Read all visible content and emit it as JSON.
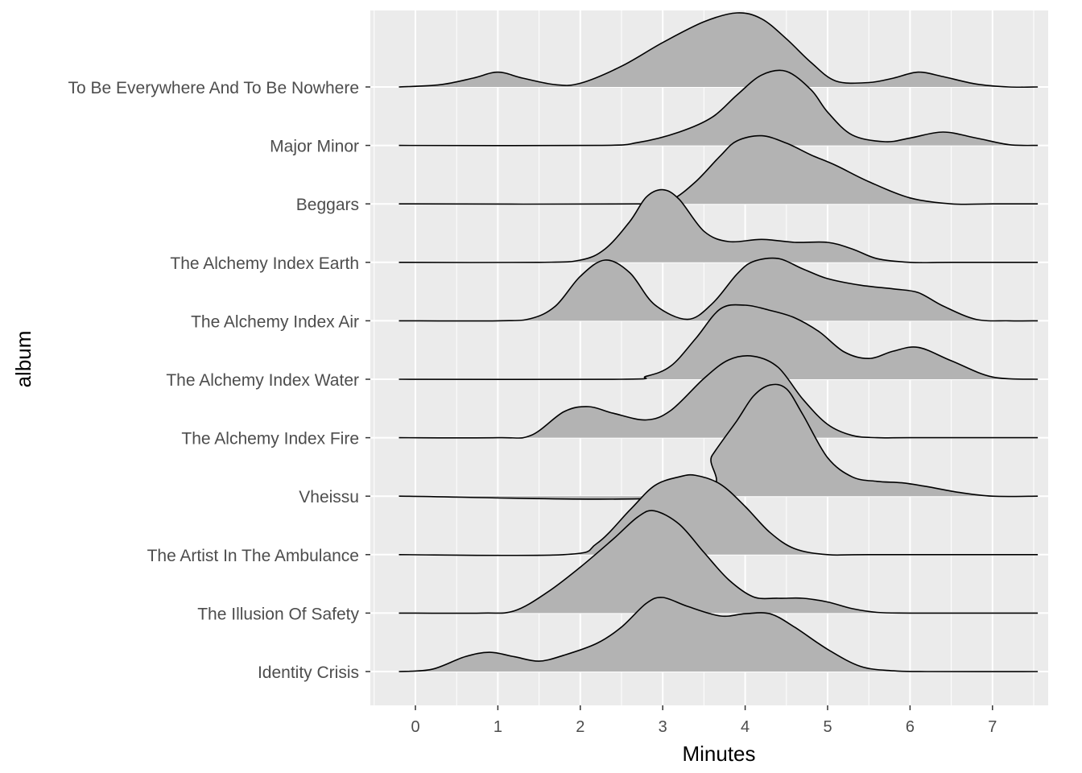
{
  "chart_data": {
    "type": "ridgeline",
    "title": "",
    "xlabel": "Minutes",
    "ylabel": "album",
    "xlim": [
      -0.5,
      7.6
    ],
    "x_ticks": [
      0,
      1,
      2,
      3,
      4,
      5,
      6,
      7
    ],
    "x_tick_labels": [
      "0",
      "1",
      "2",
      "3",
      "4",
      "5",
      "6",
      "7"
    ],
    "grid": true,
    "legend": "none",
    "colors": {
      "panel": "#ebebeb",
      "grid": "#ffffff",
      "fill": "#b3b3b3",
      "line": "#000000"
    },
    "series": [
      {
        "name": "To Be Everywhere And To Be Nowhere",
        "x": [
          -0.2,
          0.3,
          0.7,
          1.0,
          1.3,
          1.7,
          2.0,
          2.5,
          3.0,
          3.5,
          3.9,
          4.2,
          4.5,
          4.8,
          5.1,
          5.5,
          5.8,
          6.1,
          6.4,
          6.8,
          7.2,
          7.55
        ],
        "y": [
          0.0,
          0.03,
          0.12,
          0.2,
          0.12,
          0.03,
          0.05,
          0.28,
          0.6,
          0.88,
          1.0,
          0.92,
          0.65,
          0.33,
          0.08,
          0.06,
          0.12,
          0.2,
          0.14,
          0.04,
          0.0,
          0.0
        ]
      },
      {
        "name": "Major Minor",
        "x": [
          -0.2,
          2.2,
          2.7,
          3.2,
          3.6,
          3.9,
          4.2,
          4.5,
          4.8,
          5.0,
          5.3,
          5.7,
          6.0,
          6.4,
          6.8,
          7.2,
          7.55
        ],
        "y": [
          0.0,
          0.0,
          0.04,
          0.18,
          0.38,
          0.68,
          0.95,
          1.0,
          0.75,
          0.45,
          0.14,
          0.05,
          0.1,
          0.18,
          0.1,
          0.01,
          0.0
        ]
      },
      {
        "name": "Beggars",
        "x": [
          -0.2,
          2.8,
          3.1,
          3.4,
          3.7,
          3.9,
          4.2,
          4.5,
          4.8,
          5.1,
          5.5,
          6.0,
          6.5,
          7.0,
          7.55
        ],
        "y": [
          0.0,
          0.0,
          0.05,
          0.3,
          0.65,
          0.85,
          0.92,
          0.82,
          0.66,
          0.52,
          0.3,
          0.08,
          0.0,
          0.0,
          0.0
        ]
      },
      {
        "name": "The Alchemy Index Earth",
        "x": [
          -0.2,
          1.5,
          2.0,
          2.3,
          2.6,
          2.8,
          3.0,
          3.2,
          3.5,
          3.8,
          4.2,
          4.6,
          5.0,
          5.3,
          5.6,
          6.0,
          6.5,
          7.55
        ],
        "y": [
          0.0,
          0.0,
          0.03,
          0.18,
          0.55,
          0.88,
          0.98,
          0.85,
          0.42,
          0.28,
          0.31,
          0.27,
          0.27,
          0.18,
          0.05,
          0.0,
          0.0,
          0.0
        ]
      },
      {
        "name": "The Alchemy Index Air",
        "x": [
          -0.2,
          1.0,
          1.4,
          1.7,
          2.0,
          2.3,
          2.6,
          2.9,
          3.3,
          3.6,
          3.9,
          4.1,
          4.4,
          4.7,
          5.0,
          5.4,
          5.8,
          6.1,
          6.4,
          6.8,
          7.2,
          7.55
        ],
        "y": [
          0.0,
          0.0,
          0.03,
          0.2,
          0.6,
          0.82,
          0.65,
          0.22,
          0.02,
          0.23,
          0.63,
          0.8,
          0.84,
          0.7,
          0.57,
          0.48,
          0.43,
          0.38,
          0.2,
          0.02,
          0.0,
          0.0
        ]
      },
      {
        "name": "The Alchemy Index Water",
        "x": [
          -0.2,
          2.5,
          2.8,
          3.1,
          3.4,
          3.7,
          4.0,
          4.3,
          4.6,
          4.9,
          5.2,
          5.5,
          5.8,
          6.1,
          6.5,
          7.0,
          7.55
        ],
        "y": [
          0.0,
          0.0,
          0.04,
          0.18,
          0.55,
          0.95,
          1.0,
          0.93,
          0.83,
          0.64,
          0.37,
          0.28,
          0.38,
          0.43,
          0.25,
          0.03,
          0.0
        ]
      },
      {
        "name": "The Alchemy Index Fire",
        "x": [
          -0.2,
          1.0,
          1.4,
          1.8,
          2.1,
          2.4,
          2.8,
          3.1,
          3.5,
          3.8,
          4.1,
          4.4,
          4.7,
          5.0,
          5.3,
          5.6,
          6.0,
          7.55
        ],
        "y": [
          0.0,
          0.0,
          0.03,
          0.35,
          0.42,
          0.33,
          0.24,
          0.37,
          0.8,
          1.05,
          1.1,
          0.95,
          0.52,
          0.18,
          0.03,
          0.0,
          0.0,
          0.0
        ]
      },
      {
        "name": "Vheissu",
        "x": [
          -0.2,
          3.3,
          3.6,
          3.9,
          4.1,
          4.3,
          4.5,
          4.7,
          5.0,
          5.3,
          5.6,
          5.9,
          6.2,
          6.6,
          7.0,
          7.55
        ],
        "y": [
          0.0,
          0.0,
          0.55,
          1.02,
          1.35,
          1.5,
          1.45,
          1.1,
          0.52,
          0.26,
          0.2,
          0.18,
          0.13,
          0.05,
          0.0,
          0.0
        ]
      },
      {
        "name": "The Artist In The Ambulance",
        "x": [
          -0.2,
          1.8,
          2.2,
          2.6,
          2.9,
          3.2,
          3.4,
          3.7,
          4.0,
          4.3,
          4.6,
          5.0,
          5.5,
          7.55
        ],
        "y": [
          0.0,
          0.0,
          0.15,
          0.6,
          0.93,
          1.05,
          1.07,
          0.95,
          0.65,
          0.3,
          0.08,
          0.0,
          0.0,
          0.0
        ]
      },
      {
        "name": "The Illusion Of Safety",
        "x": [
          -0.2,
          0.8,
          1.2,
          1.6,
          2.0,
          2.4,
          2.7,
          2.9,
          3.2,
          3.5,
          3.8,
          4.1,
          4.4,
          4.7,
          5.0,
          5.3,
          5.6,
          6.0,
          7.55
        ],
        "y": [
          0.0,
          0.0,
          0.03,
          0.28,
          0.62,
          1.0,
          1.3,
          1.38,
          1.2,
          0.82,
          0.45,
          0.22,
          0.2,
          0.2,
          0.15,
          0.06,
          0.01,
          0.0,
          0.0
        ]
      },
      {
        "name": "Identity Crisis",
        "x": [
          -0.2,
          0.2,
          0.6,
          0.9,
          1.2,
          1.5,
          1.8,
          2.2,
          2.5,
          2.8,
          3.0,
          3.3,
          3.7,
          4.0,
          4.3,
          4.6,
          5.0,
          5.4,
          5.8,
          6.2,
          7.55
        ],
        "y": [
          0.0,
          0.03,
          0.2,
          0.26,
          0.2,
          0.14,
          0.22,
          0.38,
          0.6,
          0.92,
          1.0,
          0.88,
          0.75,
          0.78,
          0.78,
          0.6,
          0.3,
          0.07,
          0.01,
          0.0,
          0.0
        ]
      }
    ]
  }
}
